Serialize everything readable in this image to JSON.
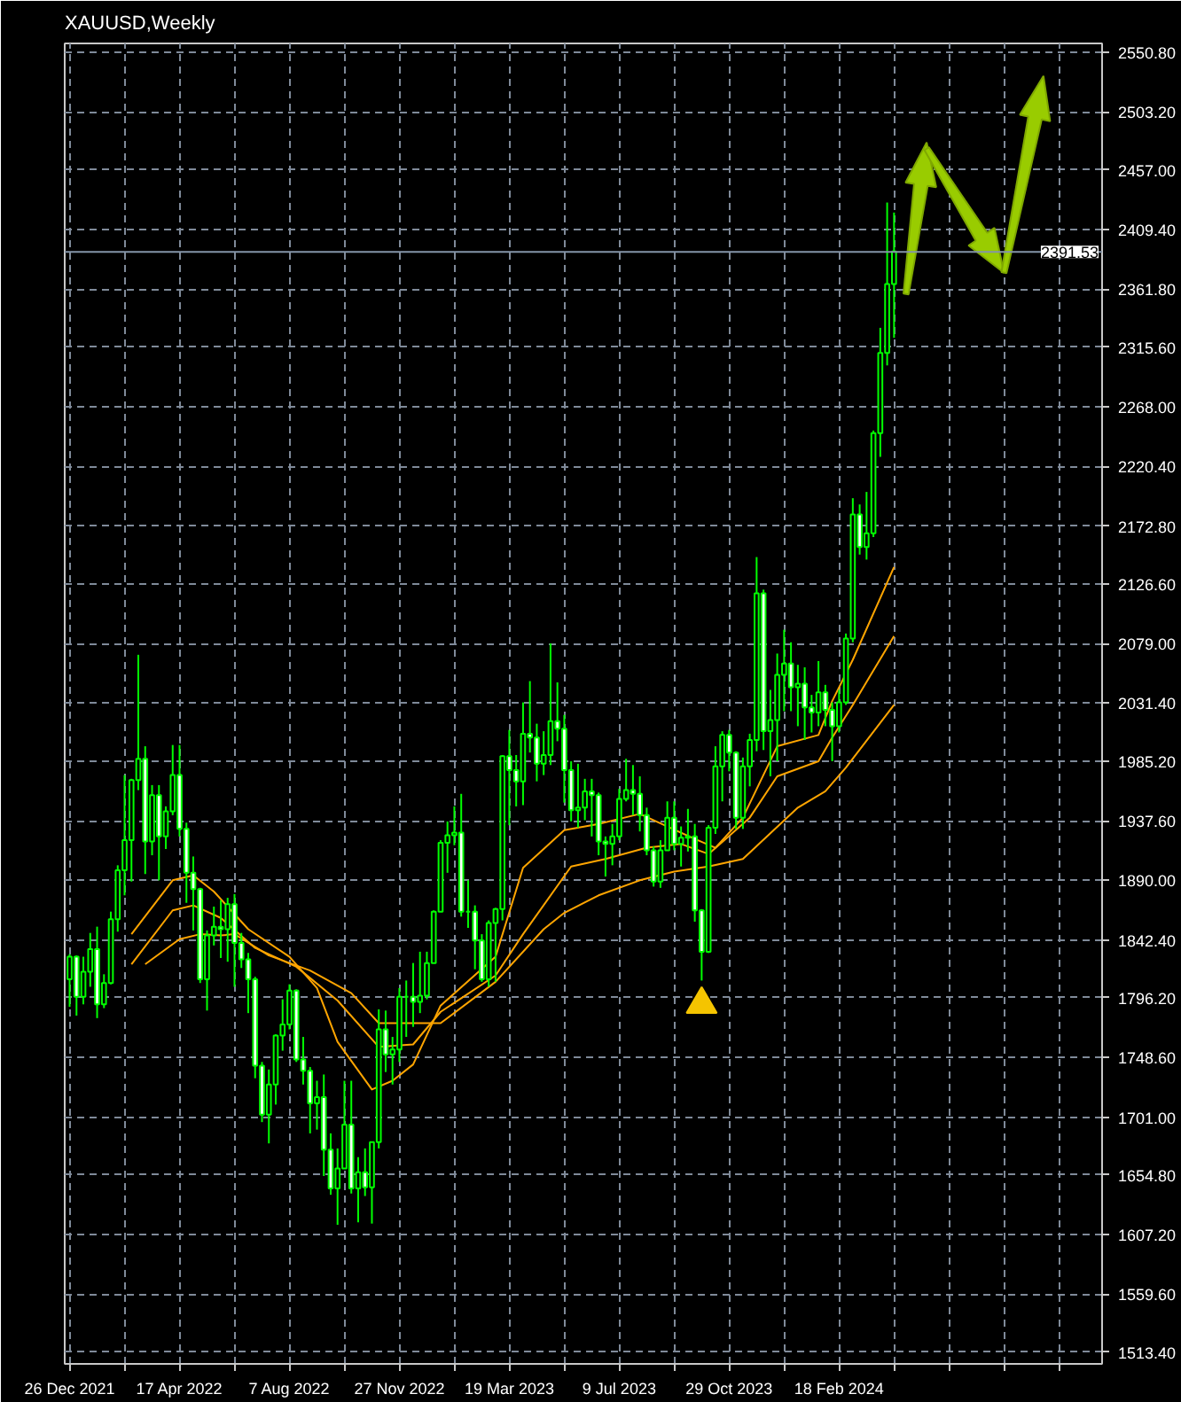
{
  "chart_data": {
    "type": "candlestick",
    "title": "XAUUSD,Weekly",
    "xlim": [
      "2021-12-21",
      "2024-11-12"
    ],
    "ylim": [
      1504,
      2558
    ],
    "xticks": [
      {
        "value": "2021-12-26",
        "label": "26 Dec 2021"
      },
      {
        "value": "2022-02-20",
        "label": null
      },
      {
        "value": "2022-04-17",
        "label": "17 Apr 2022"
      },
      {
        "value": "2022-06-12",
        "label": null
      },
      {
        "value": "2022-08-07",
        "label": "7 Aug 2022"
      },
      {
        "value": "2022-10-02",
        "label": null
      },
      {
        "value": "2022-11-27",
        "label": "27 Nov 2022"
      },
      {
        "value": "2023-01-22",
        "label": null
      },
      {
        "value": "2023-03-19",
        "label": "19 Mar 2023"
      },
      {
        "value": "2023-05-14",
        "label": null
      },
      {
        "value": "2023-07-09",
        "label": "9 Jul 2023"
      },
      {
        "value": "2023-09-03",
        "label": null
      },
      {
        "value": "2023-10-29",
        "label": "29 Oct 2023"
      },
      {
        "value": "2023-12-24",
        "label": null
      },
      {
        "value": "2024-02-18",
        "label": "18 Feb 2024"
      },
      {
        "value": "2024-04-14",
        "label": null
      },
      {
        "value": "2024-06-09",
        "label": null
      },
      {
        "value": "2024-08-04",
        "label": null
      },
      {
        "value": "2024-09-29",
        "label": null
      }
    ],
    "yticks": [
      {
        "value": 1513.4,
        "label": "1513.40"
      },
      {
        "value": 1559.6,
        "label": "1559.60"
      },
      {
        "value": 1607.2,
        "label": "1607.20"
      },
      {
        "value": 1654.8,
        "label": "1654.80"
      },
      {
        "value": 1701.0,
        "label": "1701.00"
      },
      {
        "value": 1748.6,
        "label": "1748.60"
      },
      {
        "value": 1796.2,
        "label": "1796.20"
      },
      {
        "value": 1842.4,
        "label": "1842.40"
      },
      {
        "value": 1890.0,
        "label": "1890.00"
      },
      {
        "value": 1937.6,
        "label": "1937.60"
      },
      {
        "value": 1985.2,
        "label": "1985.20"
      },
      {
        "value": 2031.4,
        "label": "2031.40"
      },
      {
        "value": 2079.0,
        "label": "2079.00"
      },
      {
        "value": 2126.6,
        "label": "2126.60"
      },
      {
        "value": 2172.8,
        "label": "2172.80"
      },
      {
        "value": 2220.4,
        "label": "2220.40"
      },
      {
        "value": 2268.0,
        "label": "2268.00"
      },
      {
        "value": 2315.6,
        "label": "2315.60"
      },
      {
        "value": 2361.8,
        "label": "2361.80"
      },
      {
        "value": 2409.4,
        "label": "2409.40"
      },
      {
        "value": 2457.0,
        "label": "2457.00"
      },
      {
        "value": 2503.2,
        "label": "2503.20"
      },
      {
        "value": 2550.8,
        "label": "2550.80"
      }
    ],
    "grid": true,
    "ref_lines": [
      {
        "axis": "y",
        "value": 2391.53,
        "label": "2391.53",
        "color": "#8494a8"
      }
    ],
    "series": [
      {
        "type": "line",
        "color": "#ffa500",
        "x": [
          "2022-02-27",
          "2022-04-10",
          "2022-05-01",
          "2022-05-22",
          "2022-06-26",
          "2022-08-07",
          "2022-09-04",
          "2022-09-25",
          "2022-10-30",
          "2022-11-20",
          "2022-12-11",
          "2023-01-08",
          "2023-03-05",
          "2023-04-02",
          "2023-05-14",
          "2023-06-18",
          "2023-07-30",
          "2023-08-27",
          "2023-09-24",
          "2023-10-15",
          "2023-11-12",
          "2023-12-17",
          "2024-01-28",
          "2024-02-11",
          "2024-03-03",
          "2024-04-14"
        ],
        "values": [
          1847,
          1890,
          1894,
          1881,
          1851,
          1829,
          1804,
          1761,
          1723,
          1730,
          1743,
          1790,
          1829,
          1900,
          1930,
          1935,
          1943,
          1933,
          1923,
          1916,
          1940,
          1997,
          2006,
          2033,
          2066,
          2140
        ]
      },
      {
        "type": "line",
        "color": "#ffa500",
        "x": [
          "2022-02-27",
          "2022-04-10",
          "2022-05-01",
          "2022-05-29",
          "2022-07-03",
          "2022-08-14",
          "2022-09-25",
          "2022-11-06",
          "2022-12-11",
          "2023-01-08",
          "2023-03-05",
          "2023-04-02",
          "2023-05-21",
          "2023-06-25",
          "2023-08-06",
          "2023-09-10",
          "2023-10-08",
          "2023-11-19",
          "2023-12-17",
          "2024-01-28",
          "2024-02-11",
          "2024-03-03",
          "2024-04-14"
        ],
        "values": [
          1823,
          1866,
          1870,
          1860,
          1836,
          1821,
          1794,
          1757,
          1759,
          1785,
          1814,
          1847,
          1901,
          1907,
          1916,
          1919,
          1911,
          1940,
          1973,
          1985,
          2004,
          2030,
          2085
        ]
      },
      {
        "type": "line",
        "color": "#ffa500",
        "x": [
          "2022-03-13",
          "2022-04-17",
          "2022-05-08",
          "2022-05-29",
          "2022-06-12",
          "2022-07-17",
          "2022-08-28",
          "2022-10-09",
          "2022-11-06",
          "2022-12-11",
          "2023-01-08",
          "2023-03-05",
          "2023-04-23",
          "2023-05-14",
          "2023-06-18",
          "2023-07-30",
          "2023-09-03",
          "2023-10-08",
          "2023-11-12",
          "2024-01-07",
          "2024-02-04",
          "2024-02-25",
          "2024-04-14"
        ],
        "values": [
          1823,
          1843,
          1847,
          1846,
          1847,
          1830,
          1818,
          1800,
          1776,
          1776,
          1776,
          1809,
          1851,
          1864,
          1878,
          1890,
          1897,
          1901,
          1907,
          1948,
          1961,
          1980,
          2030
        ]
      },
      {
        "type": "scatter",
        "marker": "triangle",
        "color": "#f5c400",
        "x": [
          "2023-10-01"
        ],
        "values": [
          1791
        ]
      },
      {
        "color": "#00ff00",
        "x": [
          "2021-12-26",
          "2022-01-02",
          "2022-01-09",
          "2022-01-16",
          "2022-01-23",
          "2022-01-30",
          "2022-02-06",
          "2022-02-13",
          "2022-02-20",
          "2022-02-27",
          "2022-03-06",
          "2022-03-13",
          "2022-03-20",
          "2022-03-27",
          "2022-04-03",
          "2022-04-10",
          "2022-04-17",
          "2022-04-24",
          "2022-05-01",
          "2022-05-08",
          "2022-05-15",
          "2022-05-22",
          "2022-05-29",
          "2022-06-05",
          "2022-06-12",
          "2022-06-19",
          "2022-06-26",
          "2022-07-03",
          "2022-07-10",
          "2022-07-17",
          "2022-07-24",
          "2022-07-31",
          "2022-08-07",
          "2022-08-14",
          "2022-08-21",
          "2022-08-28",
          "2022-09-04",
          "2022-09-11",
          "2022-09-18",
          "2022-09-25",
          "2022-10-02",
          "2022-10-09",
          "2022-10-16",
          "2022-10-23",
          "2022-10-30",
          "2022-11-06",
          "2022-11-13",
          "2022-11-20",
          "2022-11-27",
          "2022-12-04",
          "2022-12-11",
          "2022-12-18",
          "2022-12-25",
          "2023-01-01",
          "2023-01-08",
          "2023-01-15",
          "2023-01-22",
          "2023-01-29",
          "2023-02-05",
          "2023-02-12",
          "2023-02-19",
          "2023-02-26",
          "2023-03-05",
          "2023-03-12",
          "2023-03-19",
          "2023-03-26",
          "2023-04-02",
          "2023-04-09",
          "2023-04-16",
          "2023-04-23",
          "2023-04-30",
          "2023-05-07",
          "2023-05-14",
          "2023-05-21",
          "2023-05-28",
          "2023-06-04",
          "2023-06-11",
          "2023-06-18",
          "2023-06-25",
          "2023-07-02",
          "2023-07-09",
          "2023-07-16",
          "2023-07-23",
          "2023-07-30",
          "2023-08-06",
          "2023-08-13",
          "2023-08-20",
          "2023-08-27",
          "2023-09-03",
          "2023-09-10",
          "2023-09-17",
          "2023-09-24",
          "2023-10-01",
          "2023-10-08",
          "2023-10-15",
          "2023-10-22",
          "2023-10-29",
          "2023-11-05",
          "2023-11-12",
          "2023-11-19",
          "2023-11-26",
          "2023-12-03",
          "2023-12-10",
          "2023-12-17",
          "2023-12-24",
          "2023-12-31",
          "2024-01-07",
          "2024-01-14",
          "2024-01-21",
          "2024-01-28",
          "2024-02-04",
          "2024-02-11",
          "2024-02-18",
          "2024-02-25",
          "2024-03-03",
          "2024-03-10",
          "2024-03-17",
          "2024-03-24",
          "2024-03-31",
          "2024-04-07",
          "2024-04-14"
        ],
        "ohlc": [
          [
            1811,
            1831,
            1789,
            1829
          ],
          [
            1829,
            1830,
            1782,
            1797
          ],
          [
            1797,
            1829,
            1791,
            1817
          ],
          [
            1817,
            1848,
            1805,
            1835
          ],
          [
            1835,
            1853,
            1780,
            1791
          ],
          [
            1791,
            1815,
            1788,
            1808
          ],
          [
            1808,
            1865,
            1807,
            1859
          ],
          [
            1859,
            1902,
            1849,
            1898
          ],
          [
            1898,
            1974,
            1878,
            1922
          ],
          [
            1922,
            1971,
            1889,
            1970
          ],
          [
            1970,
            2070,
            1962,
            1987
          ],
          [
            1987,
            1997,
            1895,
            1921
          ],
          [
            1921,
            1966,
            1910,
            1958
          ],
          [
            1958,
            1966,
            1890,
            1925
          ],
          [
            1925,
            1949,
            1915,
            1945
          ],
          [
            1945,
            1998,
            1942,
            1974
          ],
          [
            1974,
            1998,
            1925,
            1931
          ],
          [
            1931,
            1936,
            1872,
            1896
          ],
          [
            1896,
            1909,
            1850,
            1883
          ],
          [
            1883,
            1884,
            1808,
            1811
          ],
          [
            1811,
            1850,
            1786,
            1846
          ],
          [
            1846,
            1869,
            1838,
            1853
          ],
          [
            1853,
            1874,
            1828,
            1851
          ],
          [
            1851,
            1876,
            1825,
            1871
          ],
          [
            1871,
            1879,
            1805,
            1840
          ],
          [
            1840,
            1848,
            1820,
            1827
          ],
          [
            1827,
            1832,
            1784,
            1811
          ],
          [
            1811,
            1813,
            1732,
            1742
          ],
          [
            1742,
            1745,
            1697,
            1703
          ],
          [
            1703,
            1739,
            1680,
            1727
          ],
          [
            1727,
            1767,
            1711,
            1766
          ],
          [
            1766,
            1795,
            1754,
            1775
          ],
          [
            1775,
            1807,
            1771,
            1802
          ],
          [
            1802,
            1803,
            1745,
            1747
          ],
          [
            1747,
            1765,
            1727,
            1738
          ],
          [
            1738,
            1741,
            1688,
            1712
          ],
          [
            1712,
            1730,
            1691,
            1717
          ],
          [
            1717,
            1735,
            1654,
            1675
          ],
          [
            1675,
            1688,
            1639,
            1644
          ],
          [
            1644,
            1676,
            1615,
            1660
          ],
          [
            1660,
            1730,
            1660,
            1695
          ],
          [
            1695,
            1730,
            1640,
            1644
          ],
          [
            1644,
            1669,
            1617,
            1657
          ],
          [
            1657,
            1676,
            1638,
            1645
          ],
          [
            1645,
            1681,
            1616,
            1681
          ],
          [
            1681,
            1787,
            1676,
            1771
          ],
          [
            1771,
            1786,
            1737,
            1751
          ],
          [
            1751,
            1765,
            1727,
            1755
          ],
          [
            1755,
            1804,
            1745,
            1797
          ],
          [
            1797,
            1810,
            1765,
            1797
          ],
          [
            1797,
            1824,
            1773,
            1793
          ],
          [
            1793,
            1833,
            1784,
            1798
          ],
          [
            1798,
            1833,
            1795,
            1824
          ],
          [
            1824,
            1866,
            1824,
            1865
          ],
          [
            1865,
            1922,
            1865,
            1920
          ],
          [
            1920,
            1937,
            1896,
            1926
          ],
          [
            1926,
            1949,
            1918,
            1928
          ],
          [
            1928,
            1959,
            1861,
            1865
          ],
          [
            1865,
            1890,
            1852,
            1865
          ],
          [
            1865,
            1870,
            1819,
            1842
          ],
          [
            1842,
            1847,
            1809,
            1811
          ],
          [
            1811,
            1858,
            1805,
            1856
          ],
          [
            1856,
            1868,
            1809,
            1867
          ],
          [
            1867,
            1990,
            1858,
            1989
          ],
          [
            1989,
            2010,
            1934,
            1978
          ],
          [
            1978,
            1990,
            1949,
            1969
          ],
          [
            1969,
            2032,
            1950,
            2007
          ],
          [
            2007,
            2049,
            1992,
            2004
          ],
          [
            2004,
            2015,
            1969,
            1983
          ],
          [
            1983,
            2009,
            1974,
            1990
          ],
          [
            1990,
            2079,
            1982,
            2017
          ],
          [
            2017,
            2048,
            2001,
            2011
          ],
          [
            2011,
            2022,
            1952,
            1978
          ],
          [
            1978,
            1985,
            1937,
            1946
          ],
          [
            1946,
            1983,
            1932,
            1948
          ],
          [
            1948,
            1971,
            1938,
            1961
          ],
          [
            1961,
            1971,
            1925,
            1958
          ],
          [
            1958,
            1960,
            1910,
            1921
          ],
          [
            1921,
            1925,
            1893,
            1919
          ],
          [
            1919,
            1935,
            1902,
            1925
          ],
          [
            1925,
            1963,
            1922,
            1955
          ],
          [
            1955,
            1987,
            1953,
            1962
          ],
          [
            1962,
            1982,
            1942,
            1959
          ],
          [
            1959,
            1973,
            1929,
            1942
          ],
          [
            1942,
            1948,
            1910,
            1914
          ],
          [
            1914,
            1917,
            1885,
            1889
          ],
          [
            1889,
            1922,
            1884,
            1914
          ],
          [
            1914,
            1953,
            1914,
            1940
          ],
          [
            1940,
            1953,
            1914,
            1919
          ],
          [
            1919,
            1933,
            1901,
            1924
          ],
          [
            1924,
            1947,
            1913,
            1925
          ],
          [
            1925,
            1935,
            1857,
            1866
          ],
          [
            1866,
            1867,
            1810,
            1833
          ],
          [
            1833,
            1934,
            1832,
            1932
          ],
          [
            1932,
            1997,
            1927,
            1981
          ],
          [
            1981,
            2009,
            1953,
            2006
          ],
          [
            2006,
            2010,
            1977,
            1992
          ],
          [
            1992,
            1993,
            1931,
            1940
          ],
          [
            1940,
            1988,
            1931,
            1981
          ],
          [
            1981,
            2007,
            1965,
            2002
          ],
          [
            2002,
            2148,
            1993,
            2119
          ],
          [
            2119,
            2122,
            1994,
            2009
          ],
          [
            2009,
            2042,
            1973,
            2018
          ],
          [
            2018,
            2071,
            1985,
            2054
          ],
          [
            2054,
            2090,
            2025,
            2063
          ],
          [
            2063,
            2080,
            2025,
            2044
          ],
          [
            2044,
            2062,
            2013,
            2047
          ],
          [
            2047,
            2060,
            2002,
            2028
          ],
          [
            2028,
            2038,
            2008,
            2024
          ],
          [
            2024,
            2065,
            2013,
            2040
          ],
          [
            2040,
            2046,
            2013,
            2026
          ],
          [
            2026,
            2032,
            1985,
            2013
          ],
          [
            2013,
            2042,
            2008,
            2032
          ],
          [
            2032,
            2087,
            2030,
            2083
          ],
          [
            2083,
            2195,
            2080,
            2182
          ],
          [
            2182,
            2190,
            2150,
            2156
          ],
          [
            2156,
            2200,
            2146,
            2167
          ],
          [
            2167,
            2249,
            2164,
            2247
          ],
          [
            2247,
            2331,
            2228,
            2311
          ],
          [
            2311,
            2431,
            2301,
            2366
          ],
          [
            2366,
            2423,
            2323,
            2392
          ]
        ]
      }
    ]
  }
}
